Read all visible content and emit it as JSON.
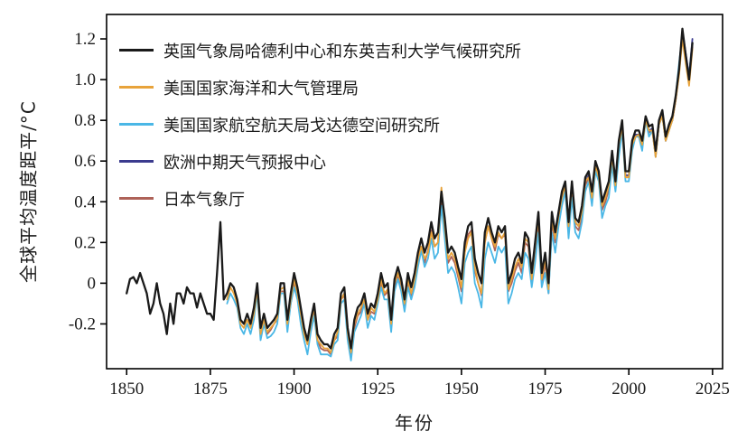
{
  "figure": {
    "background": "#ffffff"
  },
  "chart_data": {
    "type": "line",
    "title": "",
    "xlabel": "年份",
    "ylabel": "全球平均温度距平/°C",
    "xlim": [
      1844,
      2028
    ],
    "ylim": [
      -0.42,
      1.32
    ],
    "x_ticks": [
      1850,
      1875,
      1900,
      1925,
      1950,
      1975,
      2000,
      2025
    ],
    "y_ticks": [
      -0.2,
      0,
      0.2,
      0.4,
      0.6,
      0.8,
      1.0,
      1.2
    ],
    "y_tick_labels": [
      "-0.2",
      "0",
      "0.2",
      "0.4",
      "0.6",
      "0.8",
      "1.0",
      "1.2"
    ],
    "grid": false,
    "legend_position": "upper-left-inside",
    "series": [
      {
        "id": "uk-met-hadley-cru",
        "label": "英国气象局哈德利中心和东英吉利大学气候研究所",
        "color": "#1a1a1a",
        "start_year": 1850,
        "values": [
          -0.05,
          0.02,
          0.03,
          0.0,
          0.05,
          0.0,
          -0.05,
          -0.15,
          -0.1,
          0.0,
          -0.1,
          -0.15,
          -0.25,
          -0.1,
          -0.2,
          -0.05,
          -0.05,
          -0.1,
          -0.02,
          -0.05,
          -0.05,
          -0.12,
          -0.05,
          -0.1,
          -0.15,
          -0.15,
          -0.18,
          0.05,
          0.3,
          -0.08,
          -0.05,
          0.0,
          -0.02,
          -0.08,
          -0.18,
          -0.2,
          -0.15,
          -0.2,
          -0.12,
          0.0,
          -0.22,
          -0.15,
          -0.22,
          -0.2,
          -0.18,
          -0.15,
          0.0,
          0.0,
          -0.18,
          -0.05,
          0.05,
          -0.02,
          -0.12,
          -0.22,
          -0.28,
          -0.18,
          -0.1,
          -0.25,
          -0.28,
          -0.3,
          -0.3,
          -0.32,
          -0.25,
          -0.22,
          -0.05,
          -0.02,
          -0.22,
          -0.32,
          -0.18,
          -0.12,
          -0.1,
          -0.05,
          -0.15,
          -0.1,
          -0.12,
          -0.05,
          0.05,
          -0.02,
          0.0,
          -0.18,
          0.02,
          0.08,
          0.02,
          -0.08,
          0.05,
          -0.02,
          0.05,
          0.15,
          0.22,
          0.15,
          0.2,
          0.3,
          0.22,
          0.25,
          0.45,
          0.32,
          0.15,
          0.18,
          0.15,
          0.08,
          0.02,
          0.2,
          0.28,
          0.3,
          0.12,
          0.05,
          0.0,
          0.25,
          0.32,
          0.25,
          0.2,
          0.28,
          0.25,
          0.28,
          0.0,
          0.05,
          0.12,
          0.15,
          0.1,
          0.25,
          0.22,
          0.05,
          0.2,
          0.35,
          0.05,
          0.15,
          0.0,
          0.35,
          0.25,
          0.35,
          0.45,
          0.5,
          0.3,
          0.5,
          0.32,
          0.3,
          0.38,
          0.52,
          0.55,
          0.45,
          0.6,
          0.55,
          0.4,
          0.45,
          0.5,
          0.65,
          0.5,
          0.7,
          0.8,
          0.55,
          0.55,
          0.7,
          0.75,
          0.75,
          0.7,
          0.82,
          0.77,
          0.78,
          0.65,
          0.8,
          0.85,
          0.72,
          0.78,
          0.82,
          0.92,
          1.05,
          1.25,
          1.12,
          1.0,
          1.18
        ]
      },
      {
        "id": "noaa",
        "label": "美国国家海洋和大气管理局",
        "color": "#e8a33b",
        "start_year": 1880,
        "values": [
          -0.08,
          -0.02,
          -0.05,
          -0.1,
          -0.2,
          -0.22,
          -0.18,
          -0.22,
          -0.15,
          -0.03,
          -0.25,
          -0.18,
          -0.24,
          -0.22,
          -0.2,
          -0.17,
          -0.03,
          -0.02,
          -0.2,
          -0.08,
          0.02,
          -0.05,
          -0.15,
          -0.25,
          -0.3,
          -0.2,
          -0.12,
          -0.28,
          -0.3,
          -0.32,
          -0.32,
          -0.34,
          -0.28,
          -0.24,
          -0.08,
          -0.05,
          -0.24,
          -0.34,
          -0.2,
          -0.15,
          -0.12,
          -0.08,
          -0.18,
          -0.12,
          -0.14,
          -0.08,
          0.02,
          -0.05,
          -0.03,
          -0.2,
          0.0,
          0.05,
          0.0,
          -0.1,
          0.02,
          -0.05,
          0.02,
          0.12,
          0.18,
          0.12,
          0.15,
          0.25,
          0.18,
          0.2,
          0.47,
          0.28,
          0.12,
          0.15,
          0.12,
          0.05,
          -0.02,
          0.15,
          0.22,
          0.25,
          0.08,
          0.0,
          -0.05,
          0.2,
          0.28,
          0.22,
          0.18,
          0.25,
          0.22,
          0.25,
          -0.03,
          0.02,
          0.08,
          0.12,
          0.08,
          0.22,
          0.2,
          0.02,
          0.18,
          0.32,
          0.02,
          0.12,
          -0.03,
          0.32,
          0.22,
          0.33,
          0.42,
          0.48,
          0.28,
          0.48,
          0.3,
          0.28,
          0.35,
          0.5,
          0.52,
          0.42,
          0.58,
          0.52,
          0.38,
          0.42,
          0.48,
          0.62,
          0.48,
          0.68,
          0.77,
          0.52,
          0.52,
          0.68,
          0.72,
          0.73,
          0.68,
          0.8,
          0.75,
          0.75,
          0.62,
          0.78,
          0.82,
          0.7,
          0.75,
          0.8,
          0.9,
          1.02,
          1.2,
          1.08,
          0.97,
          1.15
        ]
      },
      {
        "id": "nasa-giss",
        "label": "美国国家航空航天局戈达德空间研究所",
        "color": "#4ab7e6",
        "start_year": 1880,
        "values": [
          -0.1,
          -0.05,
          -0.08,
          -0.12,
          -0.22,
          -0.25,
          -0.2,
          -0.25,
          -0.18,
          -0.05,
          -0.28,
          -0.2,
          -0.27,
          -0.26,
          -0.24,
          -0.2,
          -0.05,
          -0.05,
          -0.24,
          -0.1,
          -0.02,
          -0.08,
          -0.2,
          -0.28,
          -0.35,
          -0.24,
          -0.16,
          -0.3,
          -0.35,
          -0.35,
          -0.35,
          -0.36,
          -0.3,
          -0.28,
          -0.1,
          -0.08,
          -0.28,
          -0.38,
          -0.24,
          -0.2,
          -0.16,
          -0.1,
          -0.22,
          -0.16,
          -0.18,
          -0.1,
          -0.02,
          -0.08,
          -0.08,
          -0.24,
          -0.04,
          0.02,
          -0.04,
          -0.14,
          -0.02,
          -0.08,
          -0.02,
          0.08,
          0.16,
          0.08,
          0.12,
          0.22,
          0.12,
          0.15,
          0.38,
          0.22,
          0.05,
          0.08,
          0.05,
          -0.02,
          -0.1,
          0.1,
          0.15,
          0.18,
          0.0,
          -0.05,
          -0.12,
          0.12,
          0.2,
          0.15,
          0.1,
          0.18,
          0.15,
          0.18,
          -0.1,
          -0.05,
          0.02,
          0.05,
          0.02,
          0.15,
          0.12,
          -0.02,
          0.1,
          0.25,
          -0.02,
          0.05,
          -0.05,
          0.25,
          0.15,
          0.28,
          0.38,
          0.45,
          0.22,
          0.42,
          0.25,
          0.22,
          0.3,
          0.45,
          0.5,
          0.38,
          0.55,
          0.5,
          0.32,
          0.38,
          0.42,
          0.58,
          0.45,
          0.62,
          0.75,
          0.5,
          0.5,
          0.65,
          0.72,
          0.72,
          0.65,
          0.8,
          0.72,
          0.75,
          0.62,
          0.78,
          0.82,
          0.7,
          0.75,
          0.8,
          0.92,
          1.08,
          1.22,
          1.1,
          1.02,
          1.18
        ]
      },
      {
        "id": "ecmwf",
        "label": "欧洲中期天气预报中心",
        "color": "#3b3b8e",
        "start_year": 1979,
        "values": [
          0.33,
          0.43,
          0.48,
          0.28,
          0.48,
          0.3,
          0.28,
          0.36,
          0.5,
          0.53,
          0.43,
          0.58,
          0.53,
          0.38,
          0.43,
          0.48,
          0.63,
          0.48,
          0.68,
          0.78,
          0.53,
          0.53,
          0.68,
          0.73,
          0.73,
          0.68,
          0.8,
          0.75,
          0.76,
          0.63,
          0.78,
          0.83,
          0.7,
          0.76,
          0.8,
          0.9,
          1.06,
          1.24,
          1.13,
          1.02,
          1.2
        ]
      },
      {
        "id": "jma",
        "label": "日本气象厅",
        "color": "#ae6258",
        "start_year": 1891,
        "values": [
          -0.18,
          -0.25,
          -0.23,
          -0.2,
          -0.18,
          -0.04,
          -0.04,
          -0.22,
          -0.1,
          0.0,
          -0.05,
          -0.15,
          -0.24,
          -0.3,
          -0.22,
          -0.14,
          -0.28,
          -0.32,
          -0.33,
          -0.33,
          -0.35,
          -0.28,
          -0.26,
          -0.08,
          -0.06,
          -0.26,
          -0.35,
          -0.22,
          -0.16,
          -0.14,
          -0.08,
          -0.18,
          -0.14,
          -0.15,
          -0.08,
          0.0,
          -0.06,
          -0.04,
          -0.22,
          -0.02,
          0.04,
          -0.02,
          -0.12,
          0.0,
          -0.06,
          0.0,
          0.1,
          0.18,
          0.1,
          0.16,
          0.26,
          0.18,
          0.2,
          0.42,
          0.28,
          0.1,
          0.13,
          0.1,
          0.03,
          -0.04,
          0.16,
          0.24,
          0.26,
          0.06,
          0.0,
          -0.06,
          0.2,
          0.28,
          0.22,
          0.16,
          0.24,
          0.22,
          0.24,
          -0.04,
          0.0,
          0.06,
          0.1,
          0.05,
          0.2,
          0.18,
          0.0,
          0.16,
          0.3,
          0.0,
          0.1,
          -0.05,
          0.3,
          0.2,
          0.32,
          0.42,
          0.47,
          0.26,
          0.46,
          0.28,
          0.26,
          0.33,
          0.48,
          0.52,
          0.4,
          0.57,
          0.52,
          0.36,
          0.4,
          0.46,
          0.6,
          0.46,
          0.66,
          0.78,
          0.52,
          0.52,
          0.67,
          0.72,
          0.72,
          0.67,
          0.8,
          0.74,
          0.75,
          0.62,
          0.78,
          0.83,
          0.7,
          0.76,
          0.8,
          0.9,
          1.03,
          1.22,
          1.1,
          0.99,
          1.16
        ]
      }
    ]
  }
}
